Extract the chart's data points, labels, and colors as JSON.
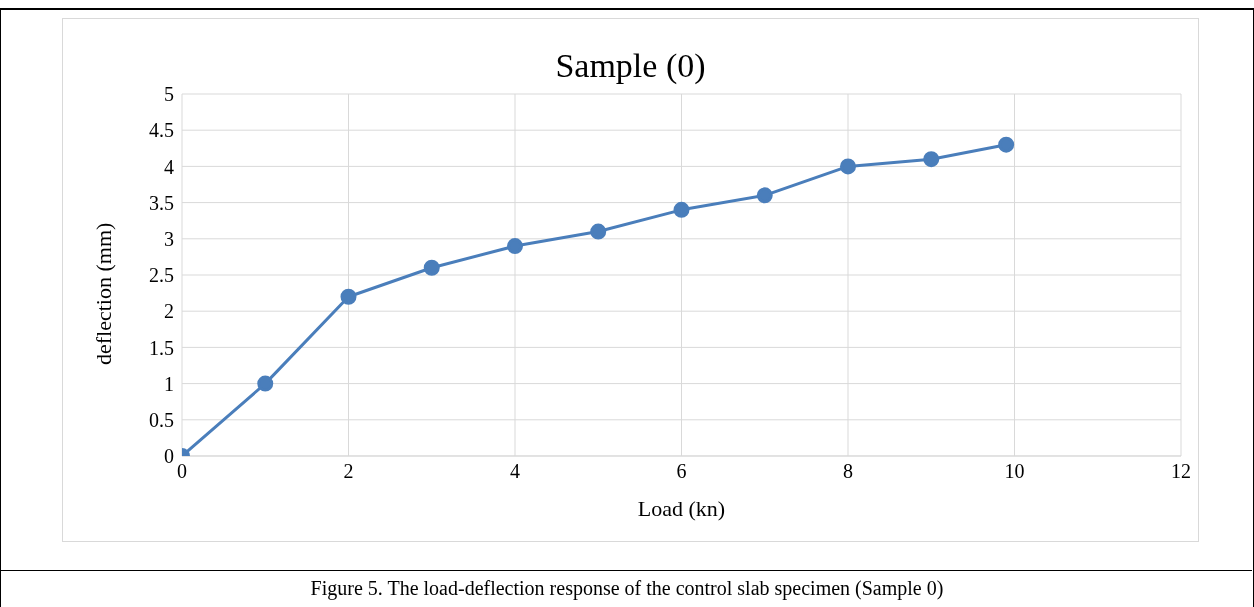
{
  "chart_data": {
    "type": "line",
    "title": "Sample (0)",
    "xlabel": "Load (kn)",
    "ylabel": "deflection (mm)",
    "x": [
      0,
      1,
      2,
      3,
      4,
      5,
      6,
      7,
      8,
      9,
      9.9
    ],
    "series": [
      {
        "color": "#4a7ebb",
        "values": [
          0,
          1,
          2.2,
          2.6,
          2.9,
          3.1,
          3.4,
          3.6,
          4,
          4.1,
          4.3
        ]
      }
    ],
    "xlim": [
      0,
      12
    ],
    "xticks": [
      0,
      2,
      4,
      6,
      8,
      10,
      12
    ],
    "ylim": [
      0,
      5
    ],
    "yticks": [
      0,
      0.5,
      1,
      1.5,
      2,
      2.5,
      3,
      3.5,
      4,
      4.5,
      5
    ],
    "grid": true,
    "marker": "circle",
    "line_style": "solid",
    "legend": false,
    "annotations": [
      "Figure 5. The load-deflection response of the control slab specimen (Sample 0)"
    ]
  }
}
